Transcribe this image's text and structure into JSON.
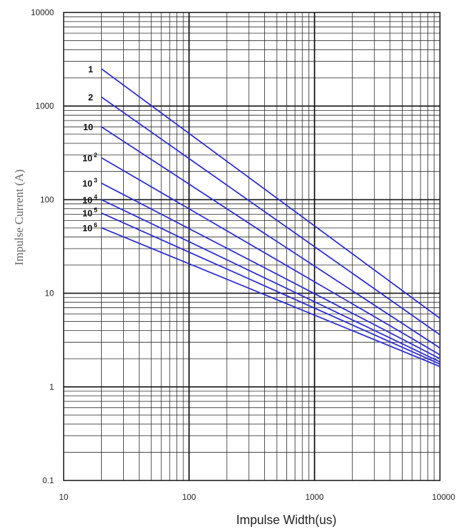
{
  "chart_data": {
    "type": "line",
    "title": "",
    "xlabel": "Impulse Width(us)",
    "ylabel": "Impulse Current   (A)",
    "x_scale": "log",
    "y_scale": "log",
    "xlim": [
      10,
      10000
    ],
    "ylim": [
      0.1,
      10000
    ],
    "x_ticks": [
      "10",
      "100",
      "1000",
      "10000"
    ],
    "y_ticks": [
      "0.1",
      "1",
      "10",
      "100",
      "1000",
      "10000"
    ],
    "grid": true,
    "line_color": "#2b2bd8",
    "series": [
      {
        "name": "1",
        "label_base": "1",
        "label_exp": "",
        "x": [
          20,
          10000
        ],
        "y": [
          2500,
          5.4
        ]
      },
      {
        "name": "2",
        "label_base": "2",
        "label_exp": "",
        "x": [
          20,
          10000
        ],
        "y": [
          1250,
          3.6
        ]
      },
      {
        "name": "10",
        "label_base": "10",
        "label_exp": "",
        "x": [
          20,
          10000
        ],
        "y": [
          600,
          2.6
        ]
      },
      {
        "name": "10^2",
        "label_base": "10",
        "label_exp": "2",
        "x": [
          20,
          10000
        ],
        "y": [
          280,
          2.2
        ]
      },
      {
        "name": "10^3",
        "label_base": "10",
        "label_exp": "3",
        "x": [
          20,
          10000
        ],
        "y": [
          150,
          2.0
        ]
      },
      {
        "name": "10^4",
        "label_base": "10",
        "label_exp": "4",
        "x": [
          20,
          10000
        ],
        "y": [
          100,
          1.85
        ]
      },
      {
        "name": "10^5",
        "label_base": "10",
        "label_exp": "5",
        "x": [
          20,
          10000
        ],
        "y": [
          72,
          1.75
        ]
      },
      {
        "name": "10^6",
        "label_base": "10",
        "label_exp": "6",
        "x": [
          20,
          10000
        ],
        "y": [
          50,
          1.65
        ]
      }
    ]
  }
}
